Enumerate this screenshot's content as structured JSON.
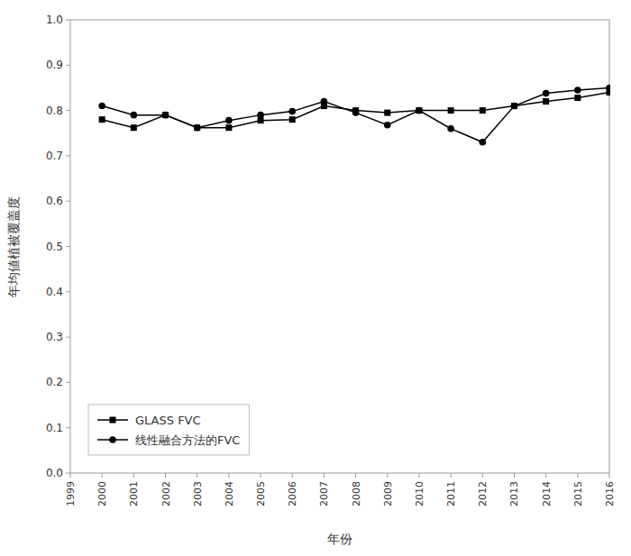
{
  "chart_data": {
    "type": "line",
    "x": [
      2000,
      2001,
      2002,
      2003,
      2004,
      2005,
      2006,
      2007,
      2008,
      2009,
      2010,
      2011,
      2012,
      2013,
      2014,
      2015,
      2016
    ],
    "series": [
      {
        "name": "GLASS FVC",
        "color": "#000000",
        "marker": "square",
        "values": [
          0.78,
          0.762,
          0.79,
          0.762,
          0.762,
          0.778,
          0.78,
          0.81,
          0.8,
          0.795,
          0.8,
          0.8,
          0.8,
          0.81,
          0.82,
          0.828,
          0.84
        ]
      },
      {
        "name": "线性融合方法的FVC",
        "color": "#000000",
        "marker": "circle",
        "values": [
          0.81,
          0.79,
          0.79,
          0.762,
          0.778,
          0.79,
          0.798,
          0.82,
          0.795,
          0.768,
          0.8,
          0.76,
          0.73,
          0.81,
          0.838,
          0.845,
          0.85
        ]
      }
    ],
    "x_label": "年份",
    "y_label": "年均値植被覆盖度",
    "xlim": [
      1999,
      2016
    ],
    "xticks": [
      1999,
      2000,
      2001,
      2002,
      2003,
      2004,
      2005,
      2006,
      2007,
      2008,
      2009,
      2010,
      2011,
      2012,
      2013,
      2014,
      2015,
      2016
    ],
    "ylim": [
      0,
      1.0
    ],
    "yticks": [
      {
        "value": 0,
        "label": "0.0"
      },
      0.1,
      0.2,
      0.3,
      0.4,
      0.5,
      0.6,
      0.7,
      0.8,
      0.9,
      {
        "value": 1.0,
        "label": "1.0"
      }
    ],
    "grid": false,
    "legend": "lower left"
  }
}
